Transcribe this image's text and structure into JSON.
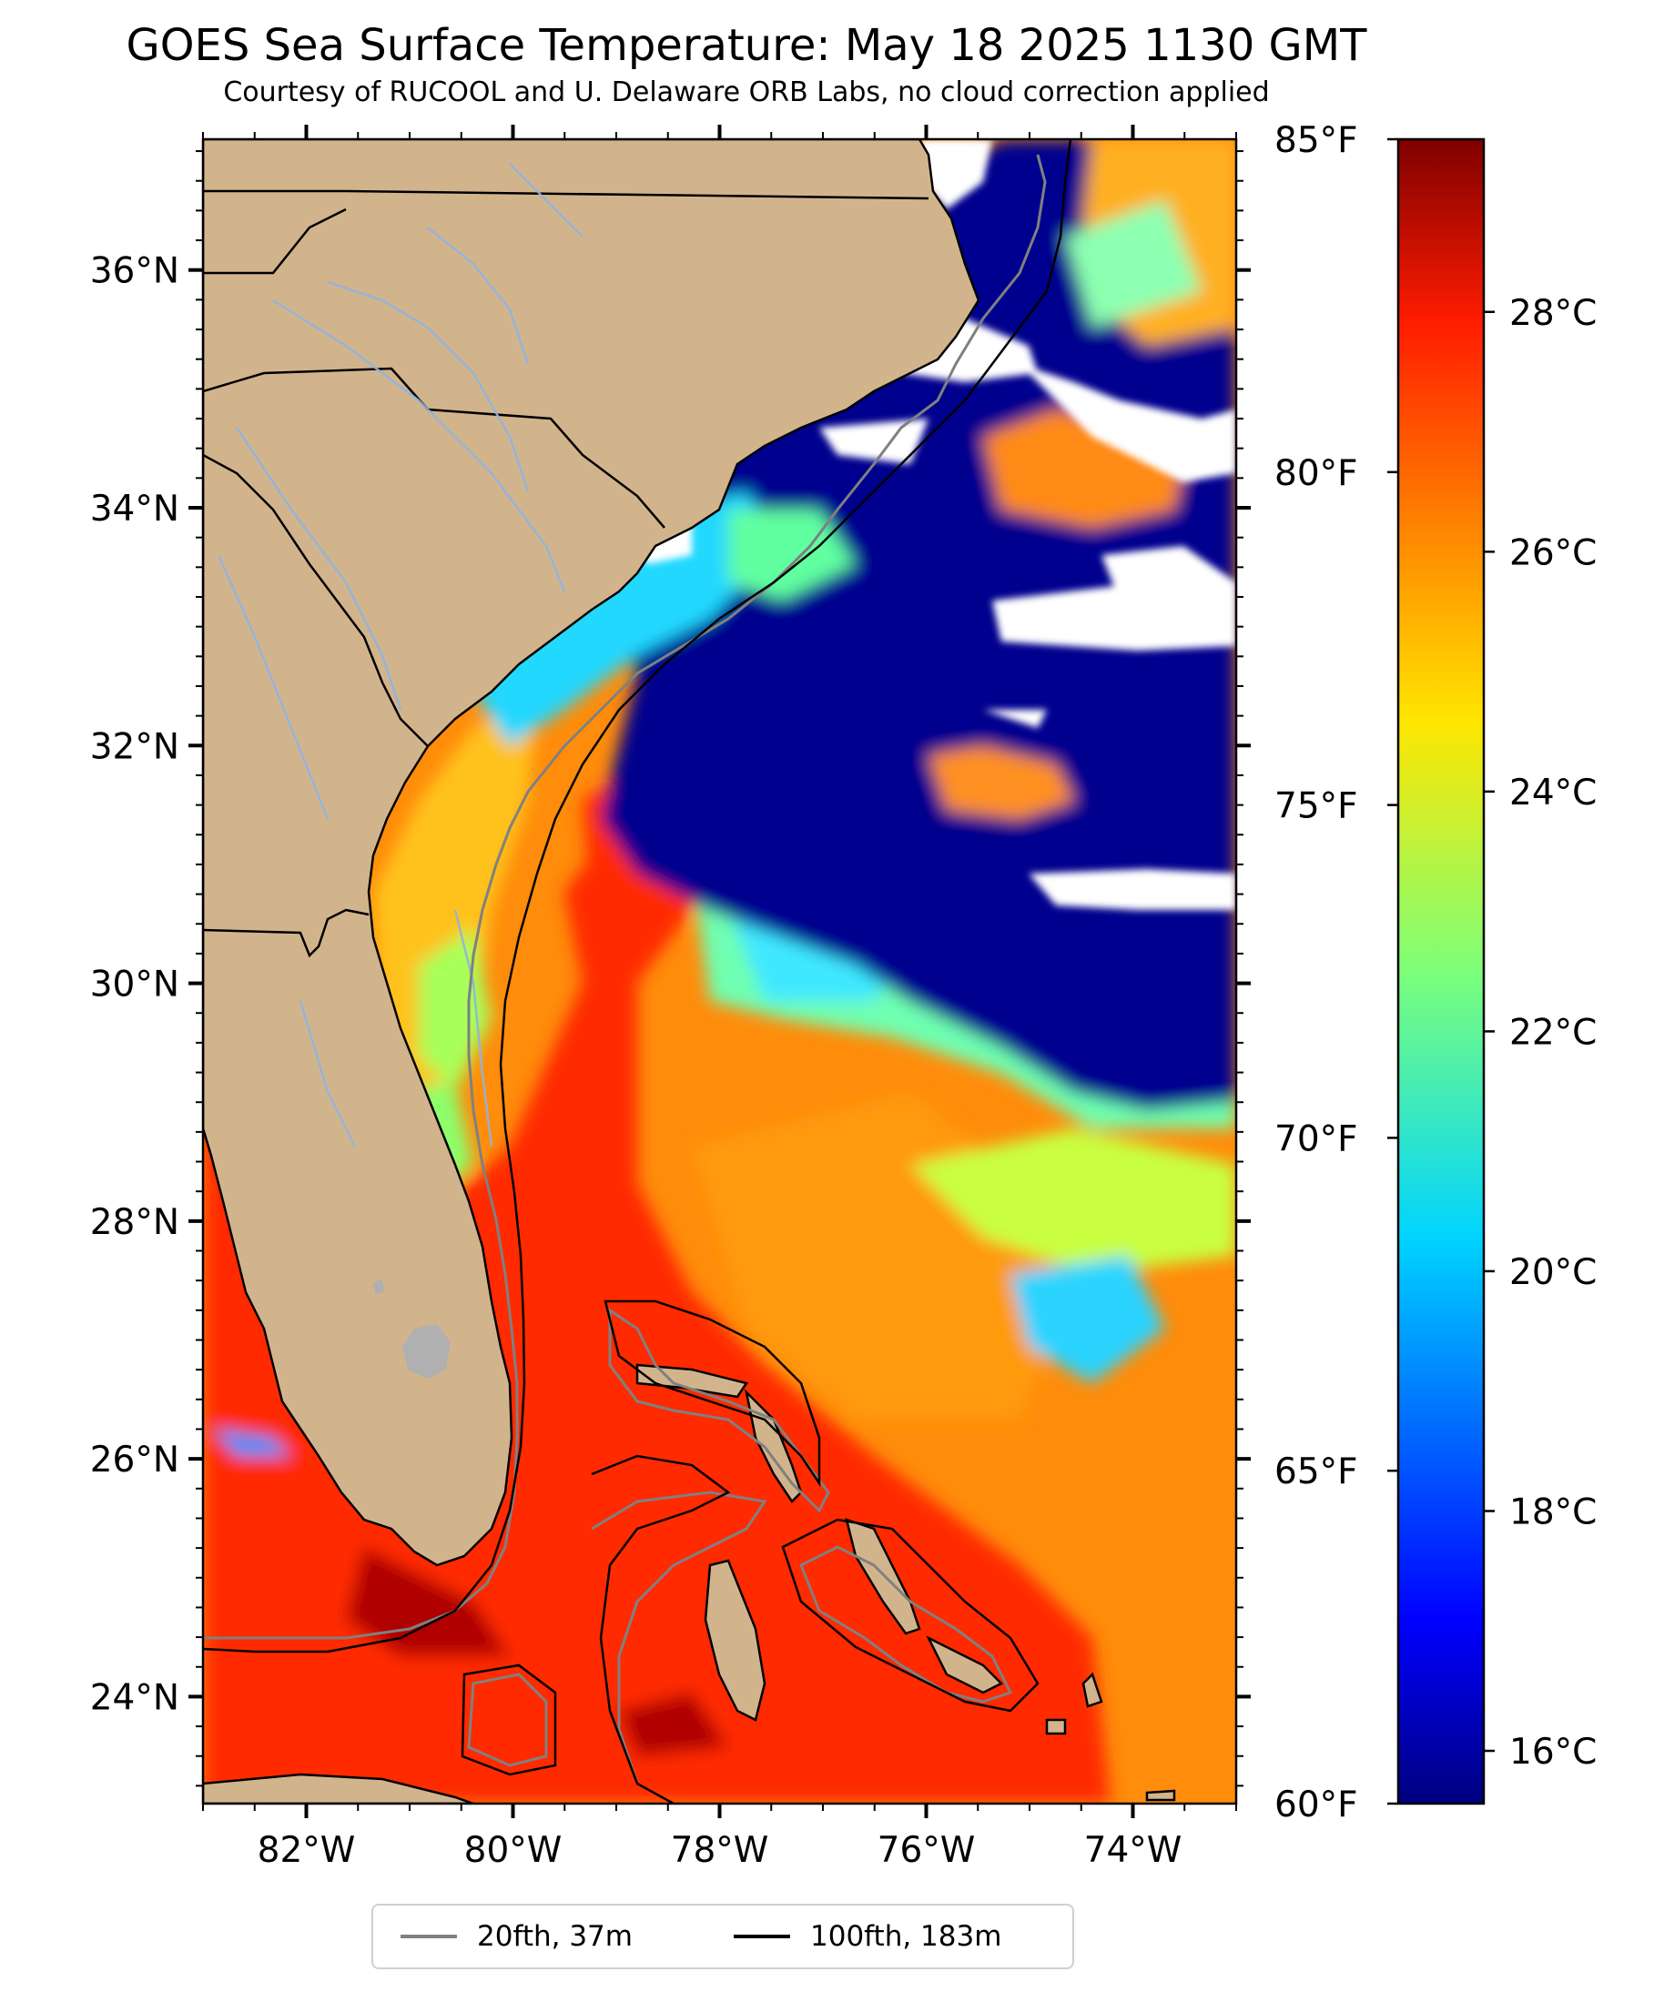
{
  "title": "GOES Sea Surface Temperature: May 18 2025 1130 GMT",
  "subtitle": "Courtesy of RUCOOL and U. Delaware ORB Labs, no cloud correction applied",
  "colors": {
    "land": "#d2b48c",
    "lakes": "#b0b0b0",
    "rivers": "#8fb4e0",
    "coastline": "#000000",
    "contour_20fth": "#808080",
    "contour_100fth": "#000000",
    "cloud_mask": "#ffffff"
  },
  "map": {
    "lon_range": [
      -83,
      -73
    ],
    "lat_range": [
      23.1,
      37.1
    ],
    "lon_ticks": [
      {
        "value": -82,
        "label": "82°W"
      },
      {
        "value": -80,
        "label": "80°W"
      },
      {
        "value": -78,
        "label": "78°W"
      },
      {
        "value": -76,
        "label": "76°W"
      },
      {
        "value": -74,
        "label": "74°W"
      }
    ],
    "lat_ticks": [
      {
        "value": 36,
        "label": "36°N"
      },
      {
        "value": 34,
        "label": "34°N"
      },
      {
        "value": 32,
        "label": "32°N"
      },
      {
        "value": 30,
        "label": "30°N"
      },
      {
        "value": 28,
        "label": "28°N"
      },
      {
        "value": 26,
        "label": "26°N"
      },
      {
        "value": 24,
        "label": "24°N"
      }
    ]
  },
  "colorbar": {
    "colormap": "jet",
    "celsius_range": [
      15.56,
      29.44
    ],
    "celsius_ticks": [
      {
        "value": 16,
        "label": "16°C"
      },
      {
        "value": 18,
        "label": "18°C"
      },
      {
        "value": 20,
        "label": "20°C"
      },
      {
        "value": 22,
        "label": "22°C"
      },
      {
        "value": 24,
        "label": "24°C"
      },
      {
        "value": 26,
        "label": "26°C"
      },
      {
        "value": 28,
        "label": "28°C"
      }
    ],
    "fahrenheit_ticks": [
      {
        "value": 60,
        "label": "60°F"
      },
      {
        "value": 65,
        "label": "65°F"
      },
      {
        "value": 70,
        "label": "70°F"
      },
      {
        "value": 75,
        "label": "75°F"
      },
      {
        "value": 80,
        "label": "80°F"
      },
      {
        "value": 85,
        "label": "85°F"
      }
    ],
    "fahrenheit_range": [
      60,
      85
    ]
  },
  "legend": {
    "items": [
      {
        "label": "20fth, 37m",
        "color": "#808080"
      },
      {
        "label": "100fth, 183m",
        "color": "#000000"
      }
    ]
  }
}
